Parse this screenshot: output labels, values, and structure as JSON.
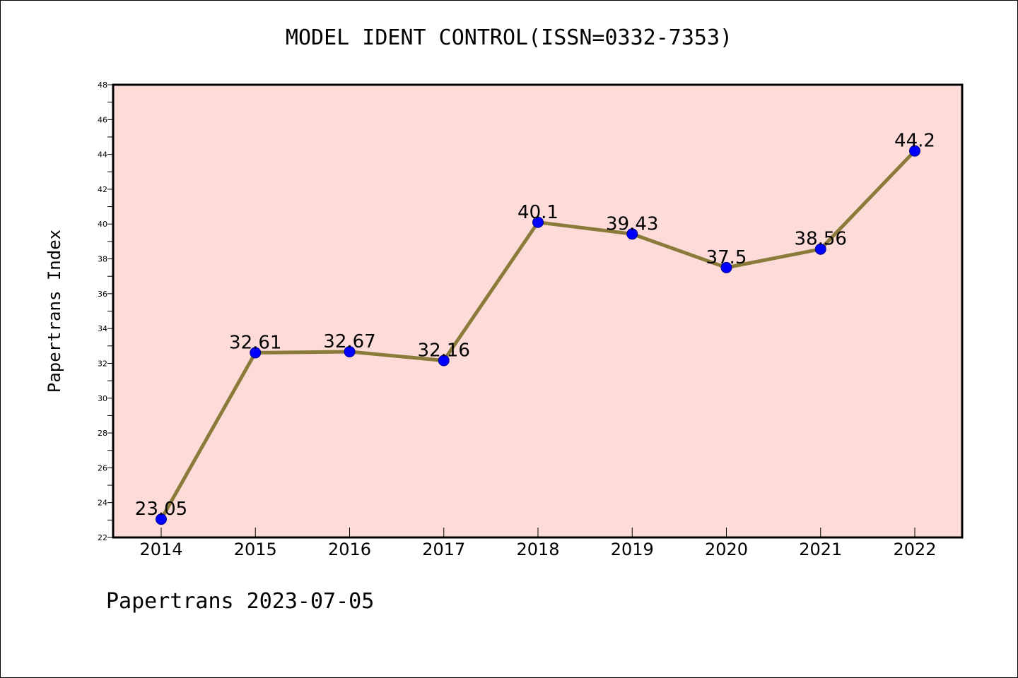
{
  "chart_data": {
    "type": "line",
    "title": "MODEL IDENT CONTROL(ISSN=0332-7353)",
    "xlabel": "",
    "ylabel": "Papertrans Index",
    "categories": [
      "2014",
      "2015",
      "2016",
      "2017",
      "2018",
      "2019",
      "2020",
      "2021",
      "2022"
    ],
    "series": [
      {
        "values": [
          23.05,
          32.61,
          32.67,
          32.16,
          40.1,
          39.43,
          37.5,
          38.56,
          44.2
        ],
        "labels": [
          "23.05",
          "32.61",
          "32.67",
          "32.16",
          "40.1",
          "39.43",
          "37.5",
          "38.56",
          "44.2"
        ]
      }
    ],
    "ylim": [
      22,
      48
    ],
    "yticks": [
      22,
      24,
      26,
      28,
      30,
      32,
      34,
      36,
      38,
      40,
      42,
      44,
      46,
      48
    ],
    "grid": false,
    "colors": {
      "plot_background": "#fddbd8",
      "line": "#8b7b3a",
      "marker": "#0000ff"
    }
  },
  "footer": "Papertrans 2023-07-05"
}
